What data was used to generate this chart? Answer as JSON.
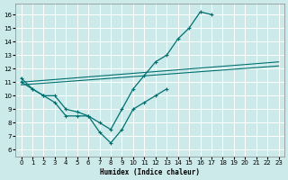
{
  "xlabel": "Humidex (Indice chaleur)",
  "bg_color": "#cceaea",
  "grid_color": "#b0d8d8",
  "line_color": "#007070",
  "xlim": [
    -0.5,
    23.5
  ],
  "ylim": [
    5.5,
    16.8
  ],
  "xticks": [
    0,
    1,
    2,
    3,
    4,
    5,
    6,
    7,
    8,
    9,
    10,
    11,
    12,
    13,
    14,
    15,
    16,
    17,
    18,
    19,
    20,
    21,
    22,
    23
  ],
  "yticks": [
    6,
    7,
    8,
    9,
    10,
    11,
    12,
    13,
    14,
    15,
    16
  ],
  "line1_x": [
    0,
    1,
    2,
    3,
    4,
    5,
    6,
    7,
    8,
    9,
    10,
    11,
    12,
    13,
    14,
    15,
    16,
    17
  ],
  "line1_y": [
    11.3,
    10.5,
    10.0,
    10.0,
    9.0,
    8.8,
    8.5,
    8.0,
    7.5,
    9.0,
    10.5,
    11.5,
    12.5,
    13.0,
    14.2,
    15.0,
    16.2,
    16.0
  ],
  "line2_x": [
    0,
    1,
    2,
    3,
    4,
    5,
    6,
    7,
    8,
    9,
    10,
    11,
    12,
    13
  ],
  "line2_y": [
    11.0,
    10.5,
    10.0,
    9.5,
    8.5,
    8.5,
    8.5,
    7.3,
    6.5,
    7.5,
    9.0,
    9.5,
    10.0,
    10.5
  ],
  "line3_x": [
    0,
    23
  ],
  "line3_y": [
    11.0,
    12.5
  ],
  "line4_x": [
    0,
    23
  ],
  "line4_y": [
    10.8,
    12.2
  ]
}
